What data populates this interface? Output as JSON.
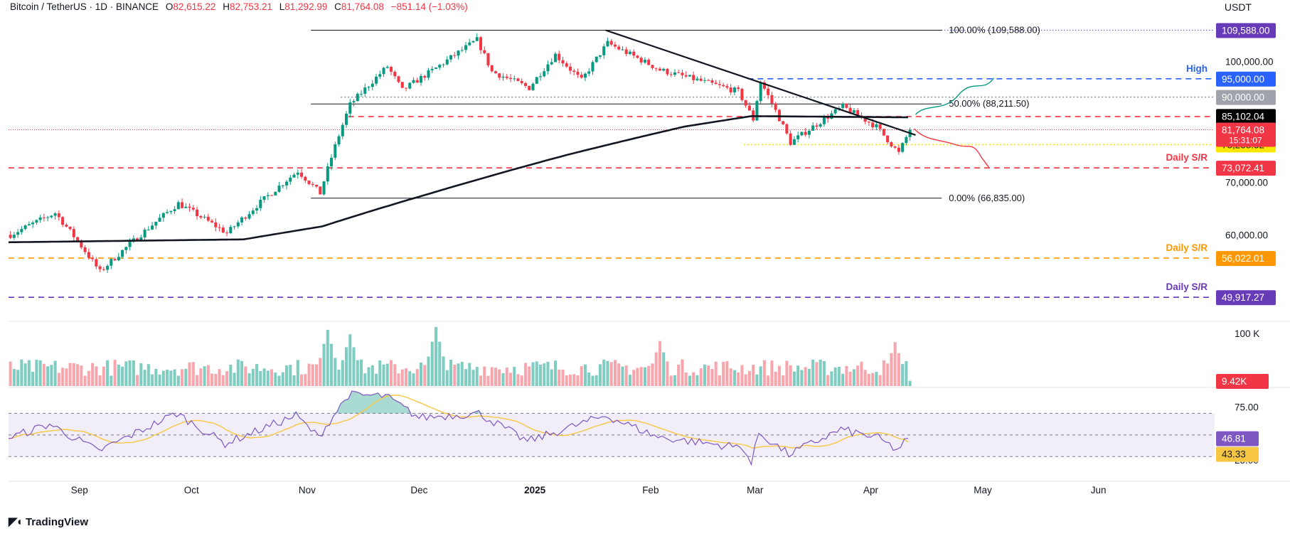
{
  "header": {
    "symbol": "Bitcoin / TetherUS · 1D · BINANCE",
    "open_label": "O",
    "open": "82,615.22",
    "high_label": "H",
    "high": "82,753.21",
    "low_label": "L",
    "low": "81,292.99",
    "close_label": "C",
    "close": "81,764.08",
    "change": "−851.14 (−1.03%)"
  },
  "unit": "USDT",
  "brand": "TradingView",
  "colors": {
    "up": "#089981",
    "down": "#f23645",
    "ma": "#131722",
    "rsi": "#7e57c2",
    "rsi_ma": "#f7c744"
  },
  "chart_data": [
    {
      "type": "candlestick",
      "title": "Bitcoin / TetherUS · 1D · BINANCE",
      "ylim": [
        47000,
        112500
      ],
      "y_ticks": [
        "100,000.00",
        "90,000.00",
        "70,000.00",
        "60,000.00"
      ],
      "x_ticks": [
        "Sep",
        "Oct",
        "Nov",
        "Dec",
        "2025",
        "Feb",
        "Mar",
        "Apr",
        "May",
        "Jun"
      ],
      "anchor_prices": [
        {
          "date": "2024-08-13",
          "price": 60000
        },
        {
          "date": "2024-08-25",
          "price": 64000
        },
        {
          "date": "2024-09-06",
          "price": 53800
        },
        {
          "date": "2024-09-27",
          "price": 65800
        },
        {
          "date": "2024-10-10",
          "price": 60300
        },
        {
          "date": "2024-10-29",
          "price": 72400
        },
        {
          "date": "2024-11-04",
          "price": 67800
        },
        {
          "date": "2024-11-12",
          "price": 88000
        },
        {
          "date": "2024-11-22",
          "price": 98500
        },
        {
          "date": "2024-11-26",
          "price": 91800
        },
        {
          "date": "2024-12-05",
          "price": 98000
        },
        {
          "date": "2024-12-16",
          "price": 106500
        },
        {
          "date": "2024-12-20",
          "price": 97000
        },
        {
          "date": "2024-12-30",
          "price": 92500
        },
        {
          "date": "2025-01-06",
          "price": 102000
        },
        {
          "date": "2025-01-13",
          "price": 94500
        },
        {
          "date": "2025-01-20",
          "price": 105500
        },
        {
          "date": "2025-01-27",
          "price": 101500
        },
        {
          "date": "2025-02-03",
          "price": 97500
        },
        {
          "date": "2025-02-24",
          "price": 91500
        },
        {
          "date": "2025-02-28",
          "price": 84300
        },
        {
          "date": "2025-03-02",
          "price": 94200
        },
        {
          "date": "2025-03-10",
          "price": 78700
        },
        {
          "date": "2025-03-24",
          "price": 87500
        },
        {
          "date": "2025-04-02",
          "price": 82500
        },
        {
          "date": "2025-04-08",
          "price": 76300
        },
        {
          "date": "2025-04-11",
          "price": 81764
        }
      ],
      "ma_200": [
        {
          "date": "2024-08-13",
          "value": 58700
        },
        {
          "date": "2024-10-15",
          "value": 59200
        },
        {
          "date": "2024-11-05",
          "value": 61500
        },
        {
          "date": "2024-12-05",
          "value": 68000
        },
        {
          "date": "2025-01-10",
          "value": 76000
        },
        {
          "date": "2025-02-10",
          "value": 82500
        },
        {
          "date": "2025-02-28",
          "value": 85100
        },
        {
          "date": "2025-04-11",
          "value": 84800
        }
      ],
      "fibonacci": [
        {
          "label": "100.00% (109,588.00)",
          "price": 109588
        },
        {
          "label": "50.00% (88,211.50)",
          "price": 88211.5
        },
        {
          "label": "0.00% (66,835.00)",
          "price": 66835
        }
      ],
      "levels": [
        {
          "price": 95000,
          "label": "High",
          "tag": "95,000.00",
          "color": "#2962ff",
          "style": "dashed"
        },
        {
          "price": 90000,
          "label": "",
          "tag": "90,000.00",
          "color": "#9598a1",
          "style": "dotted"
        },
        {
          "price": 85000,
          "label": "",
          "tag": "85,000.00",
          "color": "#f23645",
          "style": "dashed"
        },
        {
          "price": 78258.52,
          "label": "",
          "tag": "78,258.52",
          "color": "#f7e600",
          "style": "dotted"
        },
        {
          "price": 73072.41,
          "label": "Daily S/R",
          "tag": "73,072.41",
          "color": "#f23645",
          "style": "dashed"
        },
        {
          "price": 56022.01,
          "label": "Daily S/R",
          "tag": "56,022.01",
          "color": "#ff9800",
          "style": "dashed"
        },
        {
          "price": 49917.27,
          "label": "Daily S/R",
          "tag": "49,917.27",
          "color": "#673ab7",
          "style": "dashed"
        }
      ],
      "price_tags": [
        {
          "price": 109588,
          "text": "109,588.00",
          "bg": "#673ab7"
        },
        {
          "price": 85102.04,
          "text": "85,102.04",
          "bg": "#000000"
        },
        {
          "price": 81764.08,
          "text": "81,764.08",
          "bg": "#f23645",
          "sub": "15:31:07"
        }
      ],
      "trendline": [
        {
          "date": "2025-01-20",
          "price": 109588
        },
        {
          "date": "2025-04-13",
          "price": 80500
        }
      ],
      "last_price": 81764.08
    },
    {
      "type": "bar",
      "title": "Volume",
      "y_tick": "100 K",
      "tag": "9.42K",
      "tag_color": "#f23645",
      "spikes": [
        {
          "date": "2024-11-06",
          "value": 100
        },
        {
          "date": "2024-11-12",
          "value": 92
        },
        {
          "date": "2024-12-05",
          "value": 105
        },
        {
          "date": "2025-02-03",
          "value": 80
        },
        {
          "date": "2025-04-07",
          "value": 78
        }
      ]
    },
    {
      "type": "line",
      "title": "RSI",
      "ylim": [
        15,
        92
      ],
      "y_ticks": [
        "75.00",
        "25.00"
      ],
      "bands": [
        70,
        50,
        30
      ],
      "rsi_value": "46.81",
      "rsi_ma_value": "43.33",
      "anchors": [
        {
          "date": "2024-08-13",
          "value": 47
        },
        {
          "date": "2024-08-24",
          "value": 60
        },
        {
          "date": "2024-09-06",
          "value": 35
        },
        {
          "date": "2024-09-27",
          "value": 70
        },
        {
          "date": "2024-10-10",
          "value": 42
        },
        {
          "date": "2024-10-29",
          "value": 68
        },
        {
          "date": "2024-11-04",
          "value": 48
        },
        {
          "date": "2024-11-12",
          "value": 87
        },
        {
          "date": "2024-11-22",
          "value": 86
        },
        {
          "date": "2024-12-01",
          "value": 66
        },
        {
          "date": "2024-12-17",
          "value": 70
        },
        {
          "date": "2024-12-30",
          "value": 44
        },
        {
          "date": "2025-01-20",
          "value": 68
        },
        {
          "date": "2025-02-03",
          "value": 48
        },
        {
          "date": "2025-02-26",
          "value": 38
        },
        {
          "date": "2025-02-28",
          "value": 23
        },
        {
          "date": "2025-03-02",
          "value": 52
        },
        {
          "date": "2025-03-10",
          "value": 32
        },
        {
          "date": "2025-03-24",
          "value": 55
        },
        {
          "date": "2025-04-03",
          "value": 47
        },
        {
          "date": "2025-04-08",
          "value": 36
        },
        {
          "date": "2025-04-11",
          "value": 46.81
        }
      ]
    }
  ]
}
